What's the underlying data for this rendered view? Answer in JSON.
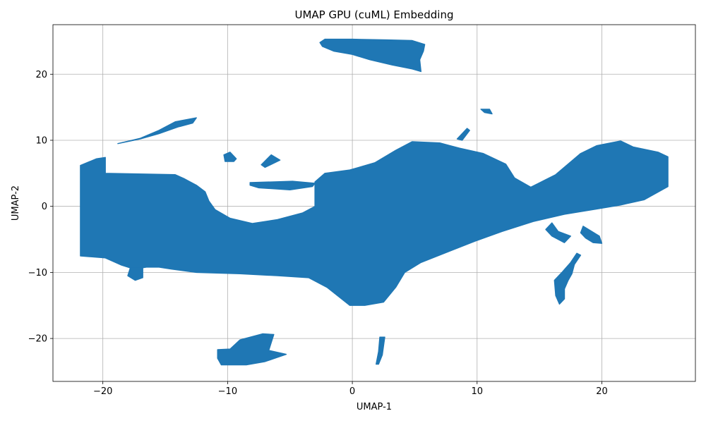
{
  "chart_data": {
    "type": "scatter",
    "title": "UMAP GPU (cuML) Embedding",
    "xlabel": "UMAP-1",
    "ylabel": "UMAP-2",
    "xlim": [
      -24,
      27.5
    ],
    "ylim": [
      -26.5,
      27.5
    ],
    "xticks": [
      -20,
      -10,
      0,
      10,
      20
    ],
    "yticks": [
      -20,
      -10,
      0,
      10,
      20
    ],
    "xtick_labels": [
      "−20",
      "−10",
      "0",
      "10",
      "20"
    ],
    "ytick_labels": [
      "−20",
      "−10",
      "0",
      "10",
      "20"
    ],
    "grid": true,
    "point_color": "#1f77b4",
    "series": [
      {
        "clusters": [
          {
            "polygon": [
              [
                -21.8,
                6.2
              ],
              [
                -20.5,
                7.2
              ],
              [
                -19.8,
                7.4
              ],
              [
                -19.8,
                5.0
              ],
              [
                -14.2,
                4.8
              ],
              [
                -13.5,
                4.2
              ],
              [
                -12.5,
                3.2
              ],
              [
                -11.8,
                2.2
              ],
              [
                -11.5,
                0.8
              ],
              [
                -11,
                -0.5
              ],
              [
                -9.8,
                -1.8
              ],
              [
                -8,
                -2.6
              ],
              [
                -6,
                -2.0
              ],
              [
                -4,
                -1.0
              ],
              [
                -3,
                0.0
              ],
              [
                -3,
                3.7
              ],
              [
                -2.2,
                5.0
              ],
              [
                -0.2,
                5.5
              ],
              [
                1.8,
                6.6
              ],
              [
                3.5,
                8.5
              ],
              [
                4.8,
                9.8
              ],
              [
                7,
                9.6
              ],
              [
                8.6,
                8.8
              ],
              [
                10.5,
                8.0
              ],
              [
                12.3,
                6.4
              ],
              [
                13.0,
                4.3
              ],
              [
                14.3,
                2.9
              ],
              [
                16.3,
                4.8
              ],
              [
                18.3,
                8.0
              ],
              [
                19.6,
                9.2
              ],
              [
                21.5,
                9.9
              ],
              [
                22.5,
                9.0
              ],
              [
                24.5,
                8.2
              ],
              [
                25.3,
                7.5
              ],
              [
                25.3,
                3.0
              ],
              [
                23.4,
                1.0
              ],
              [
                21.5,
                0.2
              ],
              [
                19.6,
                -0.4
              ],
              [
                17,
                -1.2
              ],
              [
                14.5,
                -2.3
              ],
              [
                12,
                -3.8
              ],
              [
                9.8,
                -5.3
              ],
              [
                7.5,
                -7.0
              ],
              [
                5.5,
                -8.5
              ],
              [
                4.2,
                -10.0
              ],
              [
                3.5,
                -12.2
              ],
              [
                2.5,
                -14.5
              ],
              [
                1.0,
                -15.0
              ],
              [
                -0.2,
                -15.0
              ],
              [
                -2,
                -12.3
              ],
              [
                -3.5,
                -10.8
              ],
              [
                -6,
                -10.5
              ],
              [
                -9,
                -10.2
              ],
              [
                -12.5,
                -10.0
              ],
              [
                -14.5,
                -9.5
              ],
              [
                -15.5,
                -9.2
              ],
              [
                -16.5,
                -9.2
              ],
              [
                -17.5,
                -9.5
              ],
              [
                -18.5,
                -8.9
              ],
              [
                -19.8,
                -7.8
              ],
              [
                -21.8,
                -7.5
              ],
              [
                -21.8,
                -2.0
              ]
            ]
          },
          {
            "polygon": [
              [
                -2.6,
                24.8
              ],
              [
                -2.2,
                25.3
              ],
              [
                0,
                25.3
              ],
              [
                2.8,
                25.2
              ],
              [
                4.8,
                25.1
              ],
              [
                5.8,
                24.5
              ],
              [
                5.7,
                23.5
              ],
              [
                5.4,
                22.2
              ],
              [
                5.5,
                20.4
              ],
              [
                4.8,
                20.8
              ],
              [
                3.2,
                21.4
              ],
              [
                1.4,
                22.2
              ],
              [
                0,
                23.0
              ],
              [
                -1.5,
                23.5
              ],
              [
                -2.4,
                24.2
              ]
            ]
          },
          {
            "polygon": [
              [
                -18.8,
                9.5
              ],
              [
                -17,
                10.3
              ],
              [
                -15.5,
                11.5
              ],
              [
                -14.2,
                12.8
              ],
              [
                -12.5,
                13.4
              ],
              [
                -12.8,
                12.6
              ],
              [
                -14,
                12.0
              ],
              [
                -15.5,
                11.0
              ],
              [
                -17,
                10.2
              ]
            ]
          },
          {
            "polygon": [
              [
                -10.8,
                -21.7
              ],
              [
                -9.8,
                -21.6
              ],
              [
                -9.0,
                -20.2
              ],
              [
                -7.2,
                -19.3
              ],
              [
                -6.3,
                -19.4
              ],
              [
                -6.7,
                -21.8
              ],
              [
                -5.3,
                -22.4
              ],
              [
                -7,
                -23.5
              ],
              [
                -8.5,
                -24.0
              ],
              [
                -10.5,
                -24.0
              ],
              [
                -10.8,
                -23.0
              ]
            ]
          },
          {
            "polygon": [
              [
                16.6,
                -14.8
              ],
              [
                17.0,
                -14.0
              ],
              [
                17.0,
                -12.5
              ],
              [
                17.3,
                -11.2
              ],
              [
                17.6,
                -10.2
              ],
              [
                17.8,
                -8.8
              ],
              [
                18.3,
                -7.4
              ],
              [
                18.0,
                -7.1
              ],
              [
                17.5,
                -8.5
              ],
              [
                16.8,
                -10.0
              ],
              [
                16.2,
                -11.2
              ],
              [
                16.3,
                -13.5
              ]
            ]
          },
          {
            "polygon": [
              [
                16.0,
                -2.5
              ],
              [
                16.5,
                -3.8
              ],
              [
                17.5,
                -4.5
              ],
              [
                17.0,
                -5.5
              ],
              [
                16.0,
                -4.5
              ],
              [
                15.5,
                -3.5
              ]
            ]
          },
          {
            "polygon": [
              [
                18.5,
                -3.0
              ],
              [
                19.2,
                -3.8
              ],
              [
                19.8,
                -4.5
              ],
              [
                20.0,
                -5.6
              ],
              [
                19.3,
                -5.5
              ],
              [
                18.7,
                -4.8
              ],
              [
                18.3,
                -4.0
              ]
            ]
          },
          {
            "polygon": [
              [
                -10.3,
                7.8
              ],
              [
                -9.8,
                8.2
              ],
              [
                -9.3,
                7.2
              ],
              [
                -9.5,
                6.8
              ],
              [
                -10.2,
                6.8
              ]
            ]
          },
          {
            "polygon": [
              [
                -7.3,
                6.3
              ],
              [
                -6.5,
                7.8
              ],
              [
                -5.8,
                7.0
              ],
              [
                -7.0,
                5.9
              ]
            ]
          },
          {
            "polygon": [
              [
                -8.2,
                3.6
              ],
              [
                -4.8,
                3.8
              ],
              [
                -3.0,
                3.5
              ],
              [
                -3.2,
                3.0
              ],
              [
                -5.0,
                2.5
              ],
              [
                -7.5,
                2.8
              ],
              [
                -8.2,
                3.2
              ]
            ]
          },
          {
            "polygon": [
              [
                8.4,
                10.2
              ],
              [
                9.2,
                11.8
              ],
              [
                9.4,
                11.5
              ],
              [
                8.8,
                10.0
              ]
            ]
          },
          {
            "polygon": [
              [
                10.3,
                14.7
              ],
              [
                11.0,
                14.7
              ],
              [
                11.2,
                14.0
              ],
              [
                10.6,
                14.2
              ]
            ]
          },
          {
            "polygon": [
              [
                2.2,
                -19.8
              ],
              [
                2.6,
                -19.8
              ],
              [
                2.4,
                -22.5
              ],
              [
                2.1,
                -23.9
              ],
              [
                1.9,
                -23.9
              ],
              [
                2.1,
                -22.0
              ]
            ]
          },
          {
            "polygon": [
              [
                -17.8,
                -9.3
              ],
              [
                -16.8,
                -9.3
              ],
              [
                -16.8,
                -10.8
              ],
              [
                -17.4,
                -11.2
              ],
              [
                -18.0,
                -10.5
              ]
            ]
          }
        ]
      }
    ]
  }
}
